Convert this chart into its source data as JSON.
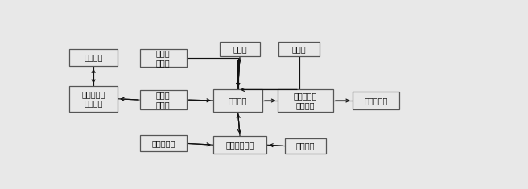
{
  "background_color": "#e8e8e8",
  "box_bg": "#e8e8e8",
  "box_edge": "#555555",
  "arrow_color": "#111111",
  "font_color": "#111111",
  "font_size": 7.0,
  "boxes": {
    "光缆线路": [
      0.008,
      0.7,
      0.118,
      0.12
    ],
    "传感器信息\n输入接口": [
      0.008,
      0.39,
      0.118,
      0.175
    ],
    "传感器\n信号灯": [
      0.18,
      0.695,
      0.115,
      0.125
    ],
    "光信号\n采集器": [
      0.18,
      0.405,
      0.115,
      0.13
    ],
    "温度传感器": [
      0.18,
      0.115,
      0.115,
      0.11
    ],
    "排气扇": [
      0.375,
      0.77,
      0.1,
      0.1
    ],
    "恒压器": [
      0.52,
      0.77,
      0.1,
      0.1
    ],
    "控制模块": [
      0.36,
      0.39,
      0.12,
      0.15
    ],
    "传感器信息\n输出接口": [
      0.518,
      0.39,
      0.135,
      0.15
    ],
    "调制解调器": [
      0.7,
      0.405,
      0.115,
      0.12
    ],
    "充放电控制器": [
      0.36,
      0.1,
      0.13,
      0.12
    ],
    "电源模块": [
      0.535,
      0.1,
      0.1,
      0.105
    ]
  }
}
